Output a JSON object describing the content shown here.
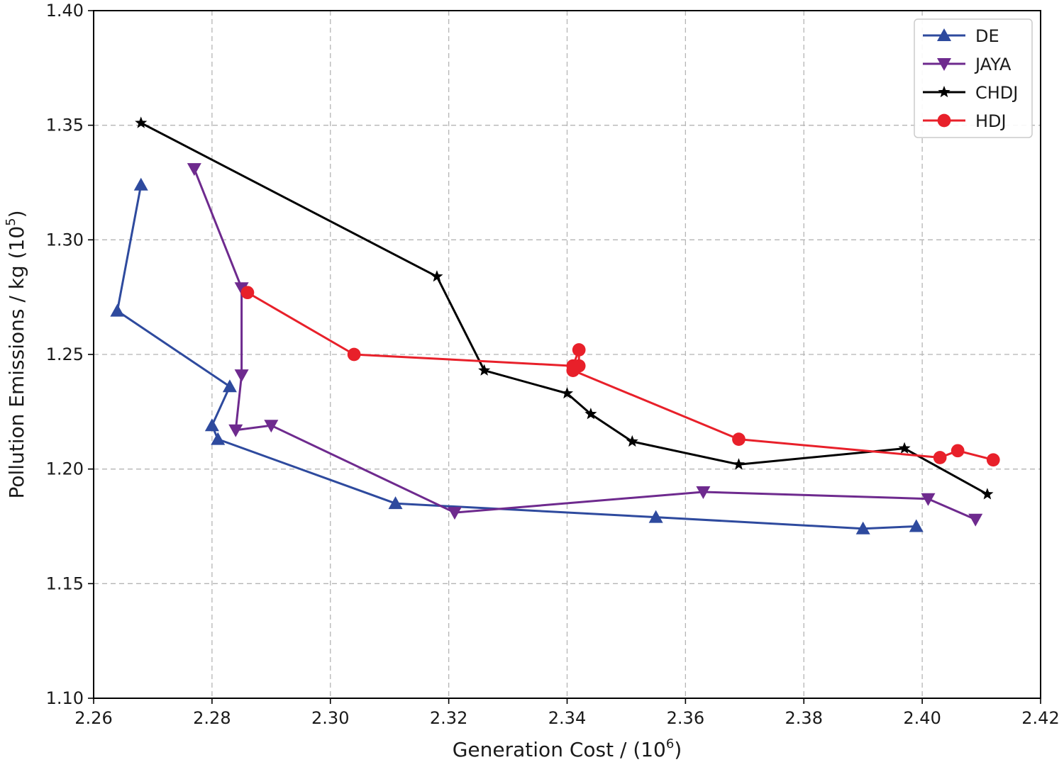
{
  "chart_data": {
    "type": "line",
    "title": "",
    "xlabel": "Generation Cost / (10",
    "xlabel_sup": "6",
    "xlabel_end": ")",
    "ylabel": "Pollution Emissions / kg (10",
    "ylabel_sup": "5",
    "ylabel_end": ")",
    "xlim": [
      2.26,
      2.42
    ],
    "ylim": [
      1.1,
      1.4
    ],
    "xticks": [
      "2.26",
      "2.28",
      "2.30",
      "2.32",
      "2.34",
      "2.36",
      "2.38",
      "2.40",
      "2.42"
    ],
    "yticks": [
      "1.10",
      "1.15",
      "1.20",
      "1.25",
      "1.30",
      "1.35",
      "1.40"
    ],
    "grid": true,
    "legend_position": "top-right",
    "series": [
      {
        "name": "DE",
        "color": "#2e4a9e",
        "marker": "triangle-up",
        "x": [
          2.268,
          2.264,
          2.283,
          2.28,
          2.281,
          2.311,
          2.355,
          2.39,
          2.399
        ],
        "y": [
          1.324,
          1.269,
          1.236,
          1.219,
          1.213,
          1.185,
          1.179,
          1.174,
          1.175
        ]
      },
      {
        "name": "JAYA",
        "color": "#6e2a8e",
        "marker": "triangle-down",
        "x": [
          2.277,
          2.285,
          2.285,
          2.284,
          2.29,
          2.321,
          2.363,
          2.401,
          2.409
        ],
        "y": [
          1.331,
          1.279,
          1.241,
          1.217,
          1.219,
          1.181,
          1.19,
          1.187,
          1.178
        ]
      },
      {
        "name": "CHDJ",
        "color": "#000000",
        "marker": "star",
        "x": [
          2.268,
          2.318,
          2.326,
          2.34,
          2.344,
          2.351,
          2.369,
          2.397,
          2.411
        ],
        "y": [
          1.351,
          1.284,
          1.243,
          1.233,
          1.224,
          1.212,
          1.202,
          1.209,
          1.189
        ]
      },
      {
        "name": "HDJ",
        "color": "#e8202a",
        "marker": "circle",
        "x": [
          2.286,
          2.304,
          2.341,
          2.342,
          2.342,
          2.341,
          2.369,
          2.403,
          2.406,
          2.412
        ],
        "y": [
          1.277,
          1.25,
          1.245,
          1.252,
          1.245,
          1.243,
          1.213,
          1.205,
          1.208,
          1.204
        ]
      }
    ]
  }
}
